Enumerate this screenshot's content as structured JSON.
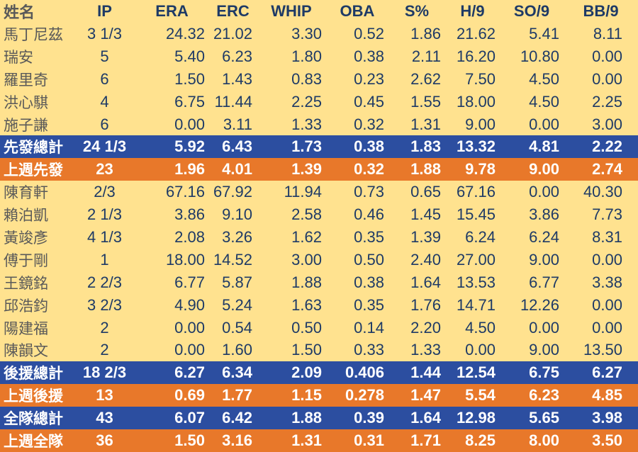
{
  "colors": {
    "background": "#ffe28f",
    "number_text": "#1e3a66",
    "name_text": "#595959",
    "total_row_bg": "#2c4ea0",
    "week_row_bg": "#e8782a",
    "inverse_text": "#ffffff"
  },
  "chart_data": {
    "type": "table",
    "title": "",
    "columns": [
      {
        "key": "name",
        "label": "姓名"
      },
      {
        "key": "ip",
        "label": "IP"
      },
      {
        "key": "era",
        "label": "ERA"
      },
      {
        "key": "erc",
        "label": "ERC"
      },
      {
        "key": "whip",
        "label": "WHIP"
      },
      {
        "key": "oba",
        "label": "OBA"
      },
      {
        "key": "spct",
        "label": "S%"
      },
      {
        "key": "h9",
        "label": "H/9"
      },
      {
        "key": "so9",
        "label": "SO/9"
      },
      {
        "key": "bb9",
        "label": "BB/9"
      }
    ],
    "rows": [
      {
        "style": "player",
        "cells": [
          "馬丁尼茲",
          "3 1/3",
          "24.32",
          "21.02",
          "3.30",
          "0.52",
          "1.86",
          "21.62",
          "5.41",
          "8.11"
        ]
      },
      {
        "style": "player",
        "cells": [
          "瑞安",
          "5",
          "5.40",
          "6.23",
          "1.80",
          "0.38",
          "2.11",
          "16.20",
          "10.80",
          "0.00"
        ]
      },
      {
        "style": "player",
        "cells": [
          "羅里奇",
          "6",
          "1.50",
          "1.43",
          "0.83",
          "0.23",
          "2.62",
          "7.50",
          "4.50",
          "0.00"
        ]
      },
      {
        "style": "player",
        "cells": [
          "洪心騏",
          "4",
          "6.75",
          "11.44",
          "2.25",
          "0.45",
          "1.55",
          "18.00",
          "4.50",
          "2.25"
        ]
      },
      {
        "style": "player",
        "cells": [
          "施子謙",
          "6",
          "0.00",
          "3.11",
          "1.33",
          "0.32",
          "1.31",
          "9.00",
          "0.00",
          "3.00"
        ]
      },
      {
        "style": "total",
        "cells": [
          "先發總計",
          "24 1/3",
          "5.92",
          "6.43",
          "1.73",
          "0.38",
          "1.83",
          "13.32",
          "4.81",
          "2.22"
        ]
      },
      {
        "style": "week",
        "cells": [
          "上週先發",
          "23",
          "1.96",
          "4.01",
          "1.39",
          "0.32",
          "1.88",
          "9.78",
          "9.00",
          "2.74"
        ]
      },
      {
        "style": "player",
        "cells": [
          "陳育軒",
          "2/3",
          "67.16",
          "67.92",
          "11.94",
          "0.73",
          "0.65",
          "67.16",
          "0.00",
          "40.30"
        ]
      },
      {
        "style": "player",
        "cells": [
          "賴泊凱",
          "2 1/3",
          "3.86",
          "9.10",
          "2.58",
          "0.46",
          "1.45",
          "15.45",
          "3.86",
          "7.73"
        ]
      },
      {
        "style": "player",
        "cells": [
          "黃竣彥",
          "4 1/3",
          "2.08",
          "3.26",
          "1.62",
          "0.35",
          "1.39",
          "6.24",
          "6.24",
          "8.31"
        ]
      },
      {
        "style": "player",
        "cells": [
          "傅于剛",
          "1",
          "18.00",
          "14.52",
          "3.00",
          "0.50",
          "2.40",
          "27.00",
          "9.00",
          "0.00"
        ]
      },
      {
        "style": "player",
        "cells": [
          "王鏡銘",
          "2 2/3",
          "6.77",
          "5.87",
          "1.88",
          "0.38",
          "1.64",
          "13.53",
          "6.77",
          "3.38"
        ]
      },
      {
        "style": "player",
        "cells": [
          "邱浩鈞",
          "3 2/3",
          "4.90",
          "5.24",
          "1.63",
          "0.35",
          "1.76",
          "14.71",
          "12.26",
          "0.00"
        ]
      },
      {
        "style": "player",
        "cells": [
          "陽建福",
          "2",
          "0.00",
          "0.54",
          "0.50",
          "0.14",
          "2.20",
          "4.50",
          "0.00",
          "0.00"
        ]
      },
      {
        "style": "player",
        "cells": [
          "陳韻文",
          "2",
          "0.00",
          "1.60",
          "1.50",
          "0.33",
          "1.33",
          "0.00",
          "9.00",
          "13.50"
        ]
      },
      {
        "style": "total",
        "cells": [
          "後援總計",
          "18 2/3",
          "6.27",
          "6.34",
          "2.09",
          "0.406",
          "1.44",
          "12.54",
          "6.75",
          "6.27"
        ]
      },
      {
        "style": "week",
        "cells": [
          "上週後援",
          "13",
          "0.69",
          "1.77",
          "1.15",
          "0.278",
          "1.47",
          "5.54",
          "6.23",
          "4.85"
        ]
      },
      {
        "style": "total",
        "cells": [
          "全隊總計",
          "43",
          "6.07",
          "6.42",
          "1.88",
          "0.39",
          "1.64",
          "12.98",
          "5.65",
          "3.98"
        ]
      },
      {
        "style": "week",
        "cells": [
          "上週全隊",
          "36",
          "1.50",
          "3.16",
          "1.31",
          "0.31",
          "1.71",
          "8.25",
          "8.00",
          "3.50"
        ]
      }
    ]
  }
}
